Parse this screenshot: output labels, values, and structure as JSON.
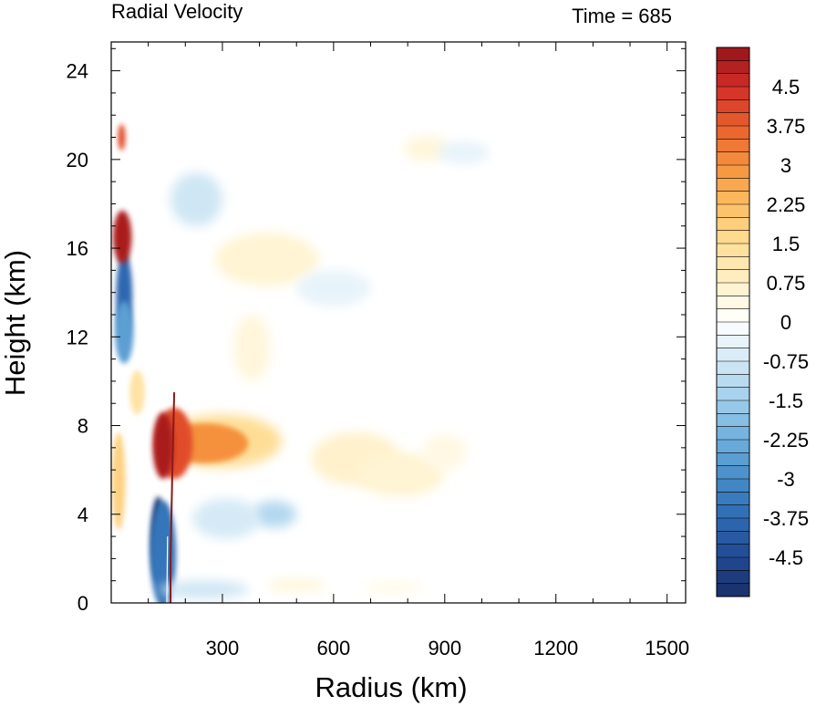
{
  "chart_data": {
    "type": "heatmap",
    "title_left": "Radial Velocity",
    "title_right": "Time = 685",
    "xlabel": "Radius (km)",
    "ylabel": "Height (km)",
    "xlim": [
      0,
      1550
    ],
    "ylim": [
      0,
      25.3
    ],
    "x_ticks": [
      "300",
      "600",
      "900",
      "1200",
      "1500"
    ],
    "x_tick_values": [
      300,
      600,
      900,
      1200,
      1500
    ],
    "y_ticks": [
      "0",
      "4",
      "8",
      "12",
      "16",
      "20",
      "24"
    ],
    "y_tick_values": [
      0,
      4,
      8,
      12,
      16,
      20,
      24
    ],
    "colorbar": {
      "levels_min": -5.25,
      "levels_max": 5.25,
      "level_step": 0.25,
      "labels": [
        "4.5",
        "3.75",
        "3",
        "2.25",
        "1.5",
        "0.75",
        "0",
        "-0.75",
        "-1.5",
        "-2.25",
        "-3",
        "-3.75",
        "-4.5"
      ],
      "label_values": [
        4.5,
        3.75,
        3,
        2.25,
        1.5,
        0.75,
        0,
        -0.75,
        -1.5,
        -2.25,
        -3,
        -3.75,
        -4.5
      ]
    },
    "features": [
      {
        "name": "low-level inflow core",
        "r": 125,
        "z": 2.9,
        "value": -5.0
      },
      {
        "name": "outflow jet core",
        "r": 140,
        "z": 7.1,
        "value": 5.0
      },
      {
        "name": "outflow jet extension",
        "r": 330,
        "z": 7.1,
        "value": 3.0
      },
      {
        "name": "upper outflow",
        "r": 30,
        "z": 16.5,
        "value": 5.0
      },
      {
        "name": "upper inflow",
        "r": 35,
        "z": 13.5,
        "value": -3.5
      },
      {
        "name": "top outflow",
        "r": 20,
        "z": 21.0,
        "value": 4.0
      }
    ]
  }
}
